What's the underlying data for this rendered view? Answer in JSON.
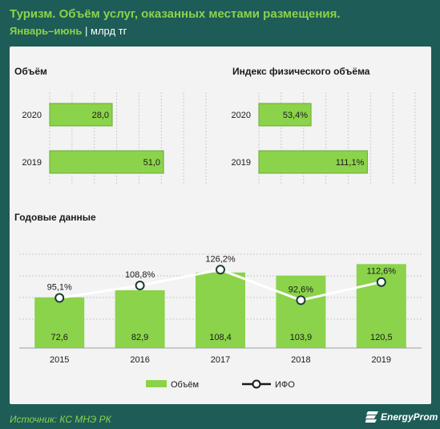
{
  "header": {
    "title": "Туризм. Объём услуг, оказанных местами размещения.",
    "period": "Январь–июнь",
    "separator": "|",
    "unit": "млрд тг"
  },
  "footer": {
    "source": "Источник: КС МНЭ РК",
    "logo_text": "EnergyProm"
  },
  "colors": {
    "bar": "#8bd34a",
    "bar_border": "#6aa838",
    "line": "#ffffff",
    "background": "#1e5c57",
    "panel": "#f2f3f2",
    "accent_text": "#8bd34a"
  },
  "chart_data": [
    {
      "type": "bar",
      "orientation": "horizontal",
      "title": "Объём",
      "categories": [
        "2020",
        "2019"
      ],
      "values": [
        28.0,
        51.0
      ],
      "value_labels": [
        "28,0",
        "51,0"
      ],
      "xlim": [
        0,
        70
      ],
      "grid": true
    },
    {
      "type": "bar",
      "orientation": "horizontal",
      "title": "Индекс физического объёма",
      "categories": [
        "2020",
        "2019"
      ],
      "values": [
        53.4,
        111.1
      ],
      "value_labels": [
        "53,4%",
        "111,1%"
      ],
      "xlim": [
        0,
        160
      ],
      "grid": true
    },
    {
      "type": "bar+line",
      "title": "Годовые данные",
      "categories": [
        "2015",
        "2016",
        "2017",
        "2018",
        "2019"
      ],
      "series": [
        {
          "name": "Объём",
          "type": "bar",
          "values": [
            72.6,
            82.9,
            108.4,
            103.9,
            120.5
          ],
          "value_labels": [
            "72,6",
            "82,9",
            "108,4",
            "103,9",
            "120,5"
          ]
        },
        {
          "name": "ИФО",
          "type": "line",
          "values": [
            95.1,
            108.8,
            126.2,
            92.6,
            112.6
          ],
          "value_labels": [
            "95,1%",
            "108,8%",
            "126,2%",
            "92,6%",
            "112,6%"
          ]
        }
      ],
      "ylim_bars": [
        0,
        160
      ],
      "ylim_line": [
        40,
        160
      ],
      "legend": "bottom",
      "grid": true
    }
  ]
}
